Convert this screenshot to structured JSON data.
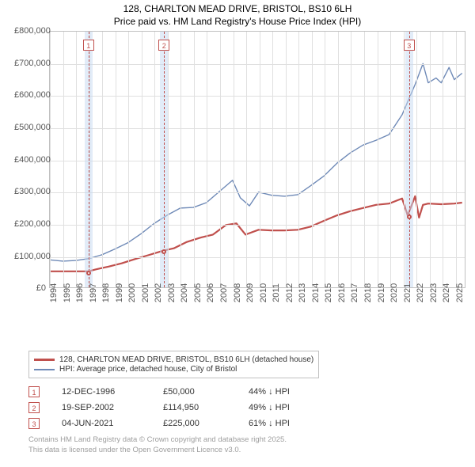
{
  "title": {
    "line1": "128, CHARLTON MEAD DRIVE, BRISTOL, BS10 6LH",
    "line2": "Price paid vs. HM Land Registry's House Price Index (HPI)"
  },
  "chart": {
    "type": "line",
    "background_color": "#ffffff",
    "grid_color": "#e0e0e0",
    "border_color": "#c0c0c0",
    "tick_color": "#555555",
    "tick_fontsize": 11,
    "x": {
      "min": 1994,
      "max": 2025.8,
      "ticks": [
        1994,
        1995,
        1996,
        1997,
        1998,
        1999,
        2000,
        2001,
        2002,
        2003,
        2004,
        2005,
        2006,
        2007,
        2008,
        2009,
        2010,
        2011,
        2012,
        2013,
        2014,
        2015,
        2016,
        2017,
        2018,
        2019,
        2020,
        2021,
        2022,
        2023,
        2024,
        2025
      ]
    },
    "y": {
      "min": 0,
      "max": 800000,
      "step": 100000,
      "prefix": "£",
      "labels": [
        "£0",
        "£100,000",
        "£200,000",
        "£300,000",
        "£400,000",
        "£500,000",
        "£600,000",
        "£700,000",
        "£800,000"
      ]
    },
    "sale_band_color": "#c6d9f1",
    "sale_dash_color": "#c0504d",
    "series": [
      {
        "id": "price_paid",
        "label": "128, CHARLTON MEAD DRIVE, BRISTOL, BS10 6LH (detached house)",
        "color": "#c0504d",
        "width": 2.2,
        "markers": true,
        "points": [
          [
            1994,
            50000
          ],
          [
            1996.95,
            50000
          ],
          [
            1997.5,
            56000
          ],
          [
            1998.5,
            65000
          ],
          [
            1999.5,
            75000
          ],
          [
            2000.5,
            88000
          ],
          [
            2001.5,
            100000
          ],
          [
            2002.72,
            114950
          ],
          [
            2003.5,
            122000
          ],
          [
            2004.5,
            142000
          ],
          [
            2005.5,
            155000
          ],
          [
            2006.5,
            165000
          ],
          [
            2007.5,
            195000
          ],
          [
            2008.3,
            200000
          ],
          [
            2009.0,
            165000
          ],
          [
            2010.0,
            180000
          ],
          [
            2011.0,
            178000
          ],
          [
            2012.0,
            178000
          ],
          [
            2013.0,
            180000
          ],
          [
            2014.0,
            190000
          ],
          [
            2015.0,
            208000
          ],
          [
            2016.0,
            225000
          ],
          [
            2017.0,
            238000
          ],
          [
            2018.0,
            248000
          ],
          [
            2019.0,
            258000
          ],
          [
            2020.0,
            262000
          ],
          [
            2021.0,
            278000
          ],
          [
            2021.43,
            225000
          ],
          [
            2022.0,
            285000
          ],
          [
            2022.3,
            218000
          ],
          [
            2022.6,
            258000
          ],
          [
            2023.0,
            262000
          ],
          [
            2024.0,
            260000
          ],
          [
            2025.0,
            262000
          ],
          [
            2025.6,
            265000
          ]
        ],
        "sale_dots": [
          [
            1996.95,
            50000
          ],
          [
            2002.72,
            114950
          ],
          [
            2021.43,
            225000
          ]
        ]
      },
      {
        "id": "hpi",
        "label": "HPI: Average price, detached house, City of Bristol",
        "color": "#6f8ab7",
        "width": 1.4,
        "markers": false,
        "points": [
          [
            1994,
            86000
          ],
          [
            1995,
            82000
          ],
          [
            1996,
            84000
          ],
          [
            1997,
            90000
          ],
          [
            1998,
            102000
          ],
          [
            1999,
            120000
          ],
          [
            2000,
            140000
          ],
          [
            2001,
            168000
          ],
          [
            2002,
            200000
          ],
          [
            2003,
            226000
          ],
          [
            2004,
            248000
          ],
          [
            2005,
            250000
          ],
          [
            2006,
            265000
          ],
          [
            2007,
            300000
          ],
          [
            2008,
            335000
          ],
          [
            2008.6,
            280000
          ],
          [
            2009.3,
            255000
          ],
          [
            2010,
            298000
          ],
          [
            2011,
            288000
          ],
          [
            2012,
            285000
          ],
          [
            2013,
            290000
          ],
          [
            2014,
            318000
          ],
          [
            2015,
            348000
          ],
          [
            2016,
            388000
          ],
          [
            2017,
            420000
          ],
          [
            2018,
            445000
          ],
          [
            2019,
            460000
          ],
          [
            2020,
            478000
          ],
          [
            2021,
            540000
          ],
          [
            2022,
            635000
          ],
          [
            2022.6,
            700000
          ],
          [
            2023,
            640000
          ],
          [
            2023.6,
            655000
          ],
          [
            2024,
            640000
          ],
          [
            2024.6,
            688000
          ],
          [
            2025,
            650000
          ],
          [
            2025.6,
            670000
          ]
        ]
      }
    ],
    "sales": [
      {
        "n": "1",
        "date": "12-DEC-1996",
        "price": "£50,000",
        "diff": "44% ↓ HPI",
        "x": 1996.95
      },
      {
        "n": "2",
        "date": "19-SEP-2002",
        "price": "£114,950",
        "diff": "49% ↓ HPI",
        "x": 2002.72
      },
      {
        "n": "3",
        "date": "04-JUN-2021",
        "price": "£225,000",
        "diff": "61% ↓ HPI",
        "x": 2021.43
      }
    ]
  },
  "attribution": {
    "line1": "Contains HM Land Registry data © Crown copyright and database right 2025.",
    "line2": "This data is licensed under the Open Government Licence v3.0."
  }
}
